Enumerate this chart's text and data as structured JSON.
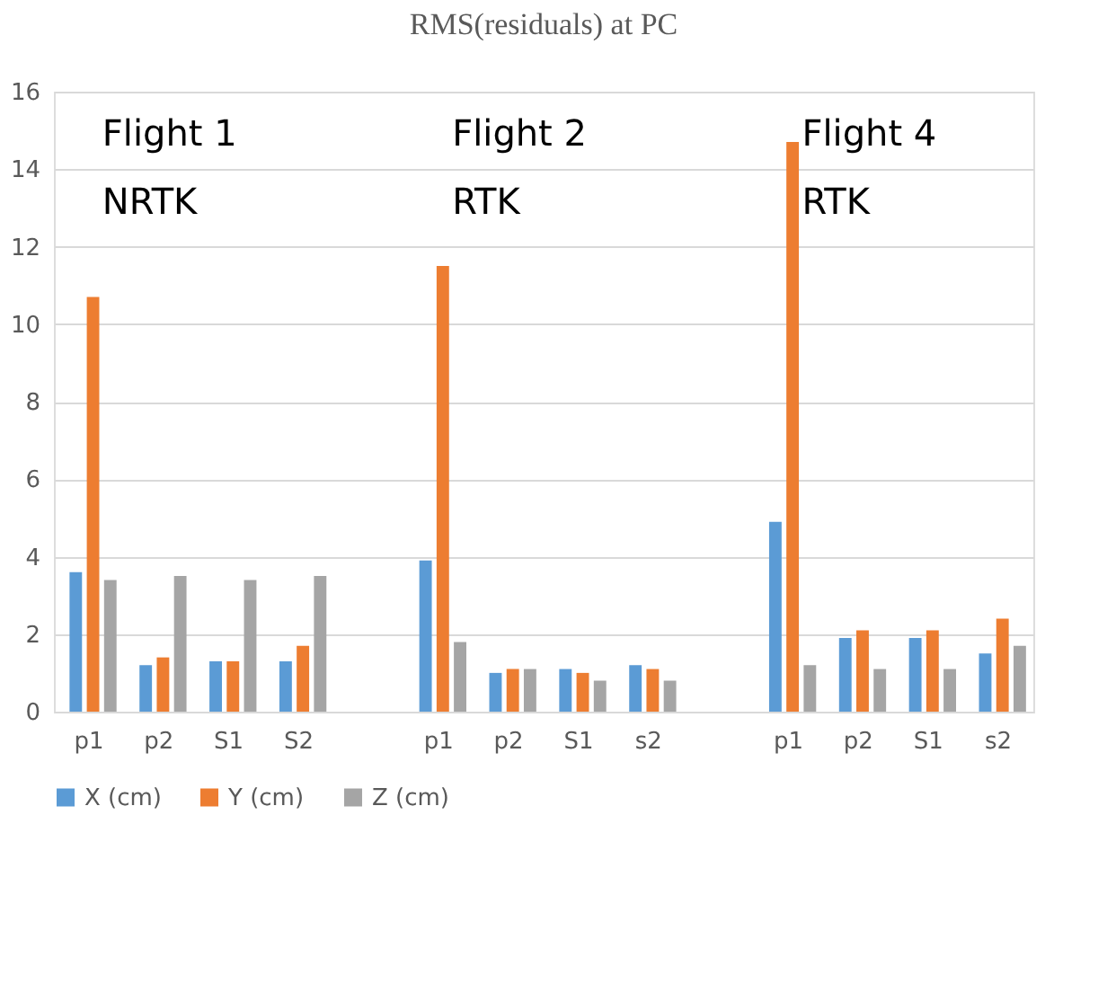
{
  "chart_data": {
    "type": "bar",
    "title": "RMS(residuals) at PC",
    "categories": [
      "p1",
      "p2",
      "S1",
      "S2",
      null,
      "p1",
      "p2",
      "S1",
      "s2",
      null,
      "p1",
      "p2",
      "S1",
      "s2"
    ],
    "series": [
      {
        "name": "X (cm)",
        "color": "#5b9bd5",
        "values": [
          3.6,
          1.2,
          1.3,
          1.3,
          null,
          3.9,
          1.0,
          1.1,
          1.2,
          null,
          4.9,
          1.9,
          1.9,
          1.5
        ]
      },
      {
        "name": "Y (cm)",
        "color": "#ed7d31",
        "values": [
          10.7,
          1.4,
          1.3,
          1.7,
          null,
          11.5,
          1.1,
          1.0,
          1.1,
          null,
          14.7,
          2.1,
          2.1,
          2.4
        ]
      },
      {
        "name": "Z (cm)",
        "color": "#a5a5a5",
        "values": [
          3.4,
          3.5,
          3.4,
          3.5,
          null,
          1.8,
          1.1,
          0.8,
          0.8,
          null,
          1.2,
          1.1,
          1.1,
          1.7
        ]
      }
    ],
    "annotations": [
      "Flight 1",
      "NRTK",
      "Flight 2",
      "RTK",
      "Flight 4",
      "RTK"
    ],
    "ylim": [
      0,
      16
    ],
    "yticks": [
      0,
      2,
      4,
      6,
      8,
      10,
      12,
      14,
      16
    ],
    "grid": "y",
    "legend": "bottom"
  }
}
